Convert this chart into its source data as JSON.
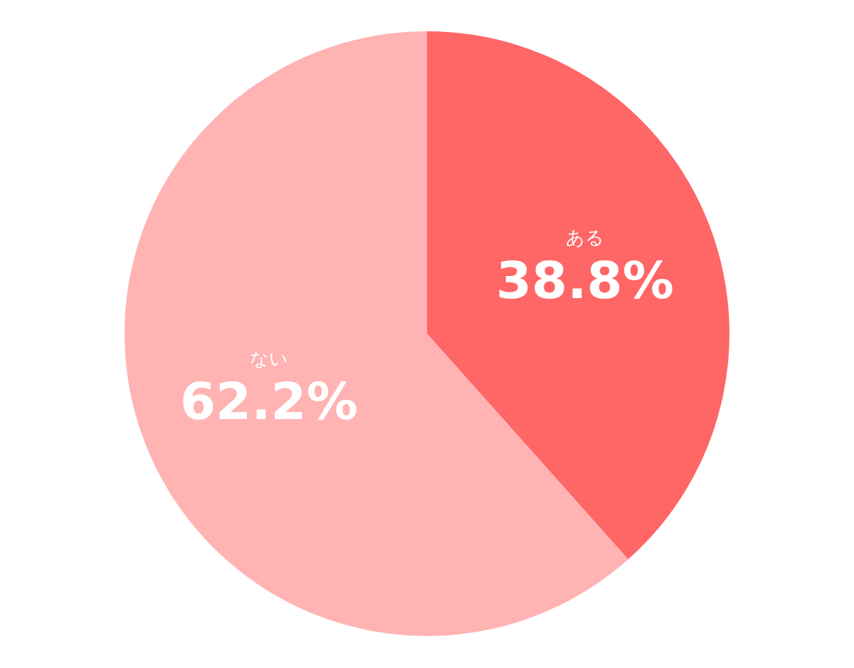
{
  "chart_data": {
    "type": "pie",
    "categories": [
      "ある",
      "ない"
    ],
    "values": [
      38.8,
      62.2
    ],
    "value_labels": [
      "38.8%",
      "62.2%"
    ],
    "colors": [
      "#ff6666",
      "#ffb3b3"
    ]
  }
}
